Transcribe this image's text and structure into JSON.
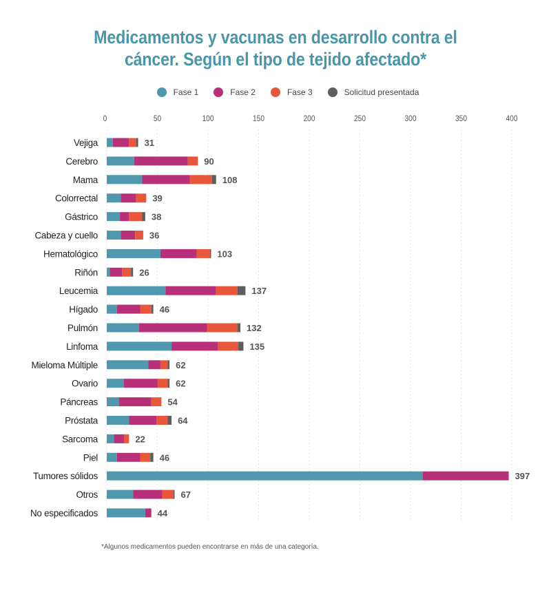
{
  "chart_data": {
    "type": "bar",
    "orientation": "horizontal",
    "stacked": true,
    "title": "Medicamentos y vacunas en desarrollo contra el cáncer. Según el tipo de tejido afectado*",
    "title_lines": [
      "Medicamentos y vacunas en desarrollo contra el",
      "cáncer. Según el tipo de tejido afectado*"
    ],
    "xlabel": "",
    "ylabel": "",
    "xlim": [
      0,
      400
    ],
    "xticks": [
      0,
      50,
      100,
      150,
      200,
      250,
      300,
      350,
      400
    ],
    "grid": true,
    "legend_position": "top",
    "categories": [
      "Vejiga",
      "Cerebro",
      "Mama",
      "Colorrectal",
      "Gástrico",
      "Cabeza y cuello",
      "Hematológico",
      "Riñón",
      "Leucemia",
      "Hígado",
      "Pulmón",
      "Linfoma",
      "Mieloma Múltiple",
      "Ovario",
      "Páncreas",
      "Próstata",
      "Sarcoma",
      "Piel",
      "Tumores sólidos",
      "Otros",
      "No especificados"
    ],
    "series": [
      {
        "name": "Fase 1",
        "color": "#4f98ad",
        "values": [
          6,
          27,
          35,
          14,
          13,
          14,
          53,
          3,
          58,
          10,
          32,
          64,
          41,
          17,
          12,
          22,
          7,
          10,
          312,
          26,
          38
        ]
      },
      {
        "name": "Fase 2",
        "color": "#b8307a",
        "values": [
          16,
          53,
          47,
          15,
          9,
          14,
          36,
          12,
          50,
          23,
          67,
          46,
          12,
          33,
          32,
          27,
          10,
          23,
          85,
          29,
          6
        ]
      },
      {
        "name": "Fase 3",
        "color": "#e8573a",
        "values": [
          7,
          10,
          22,
          10,
          13,
          8,
          13,
          9,
          21,
          11,
          30,
          20,
          7,
          10,
          10,
          11,
          5,
          10,
          0,
          11,
          0
        ]
      },
      {
        "name": "Solicitud presentada",
        "color": "#5e5e5e",
        "values": [
          2,
          0,
          4,
          0,
          3,
          0,
          1,
          2,
          8,
          2,
          3,
          5,
          2,
          2,
          0,
          4,
          0,
          3,
          0,
          1,
          0
        ]
      }
    ],
    "totals": [
      31,
      90,
      108,
      39,
      38,
      36,
      103,
      26,
      137,
      46,
      132,
      135,
      62,
      62,
      54,
      64,
      22,
      46,
      397,
      67,
      44
    ],
    "footnote": "*Algunos medicamentos pueden encontrarse en más de una categoría."
  },
  "legend": [
    {
      "label": "Fase 1",
      "color": "#4f98ad"
    },
    {
      "label": "Fase 2",
      "color": "#b8307a"
    },
    {
      "label": "Fase 3",
      "color": "#e8573a"
    },
    {
      "label": "Solicitud presentada",
      "color": "#5e5e5e"
    }
  ]
}
